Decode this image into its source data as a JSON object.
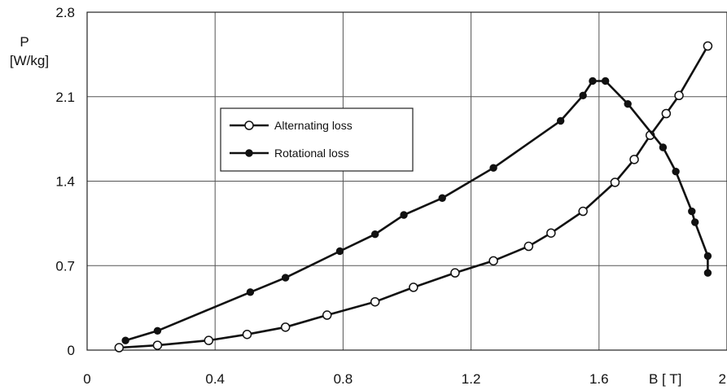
{
  "chart_data": {
    "type": "line",
    "ylabel_line1": "P",
    "ylabel_line2": "[W/kg]",
    "xlabel": "B [ T]",
    "xlim": [
      0,
      2
    ],
    "ylim": [
      0,
      2.8
    ],
    "x_ticks": [
      "0",
      "0.4",
      "0.8",
      "1.2",
      "1.6",
      "2"
    ],
    "y_ticks": [
      "0",
      "0.7",
      "1.4",
      "2.1",
      "2.8"
    ],
    "grid": true,
    "legend_position": "upper-left-center",
    "series": [
      {
        "name": "Alternating loss",
        "marker": "open-circle",
        "x": [
          0.1,
          0.22,
          0.38,
          0.5,
          0.62,
          0.75,
          0.9,
          1.02,
          1.15,
          1.27,
          1.38,
          1.45,
          1.55,
          1.65,
          1.71,
          1.76,
          1.81,
          1.85,
          1.94
        ],
        "y": [
          0.02,
          0.04,
          0.08,
          0.13,
          0.19,
          0.29,
          0.4,
          0.52,
          0.64,
          0.74,
          0.86,
          0.97,
          1.15,
          1.39,
          1.58,
          1.78,
          1.96,
          2.11,
          2.52
        ]
      },
      {
        "name": "Rotational loss",
        "marker": "filled-circle",
        "x": [
          0.12,
          0.22,
          0.51,
          0.62,
          0.79,
          0.9,
          0.99,
          1.11,
          1.27,
          1.48,
          1.55,
          1.58,
          1.62,
          1.69,
          1.8,
          1.84,
          1.89,
          1.9,
          1.94,
          1.94
        ],
        "y": [
          0.08,
          0.16,
          0.48,
          0.6,
          0.82,
          0.96,
          1.12,
          1.26,
          1.51,
          1.9,
          2.11,
          2.23,
          2.23,
          2.04,
          1.68,
          1.48,
          1.15,
          1.06,
          0.78,
          0.64
        ]
      }
    ]
  }
}
